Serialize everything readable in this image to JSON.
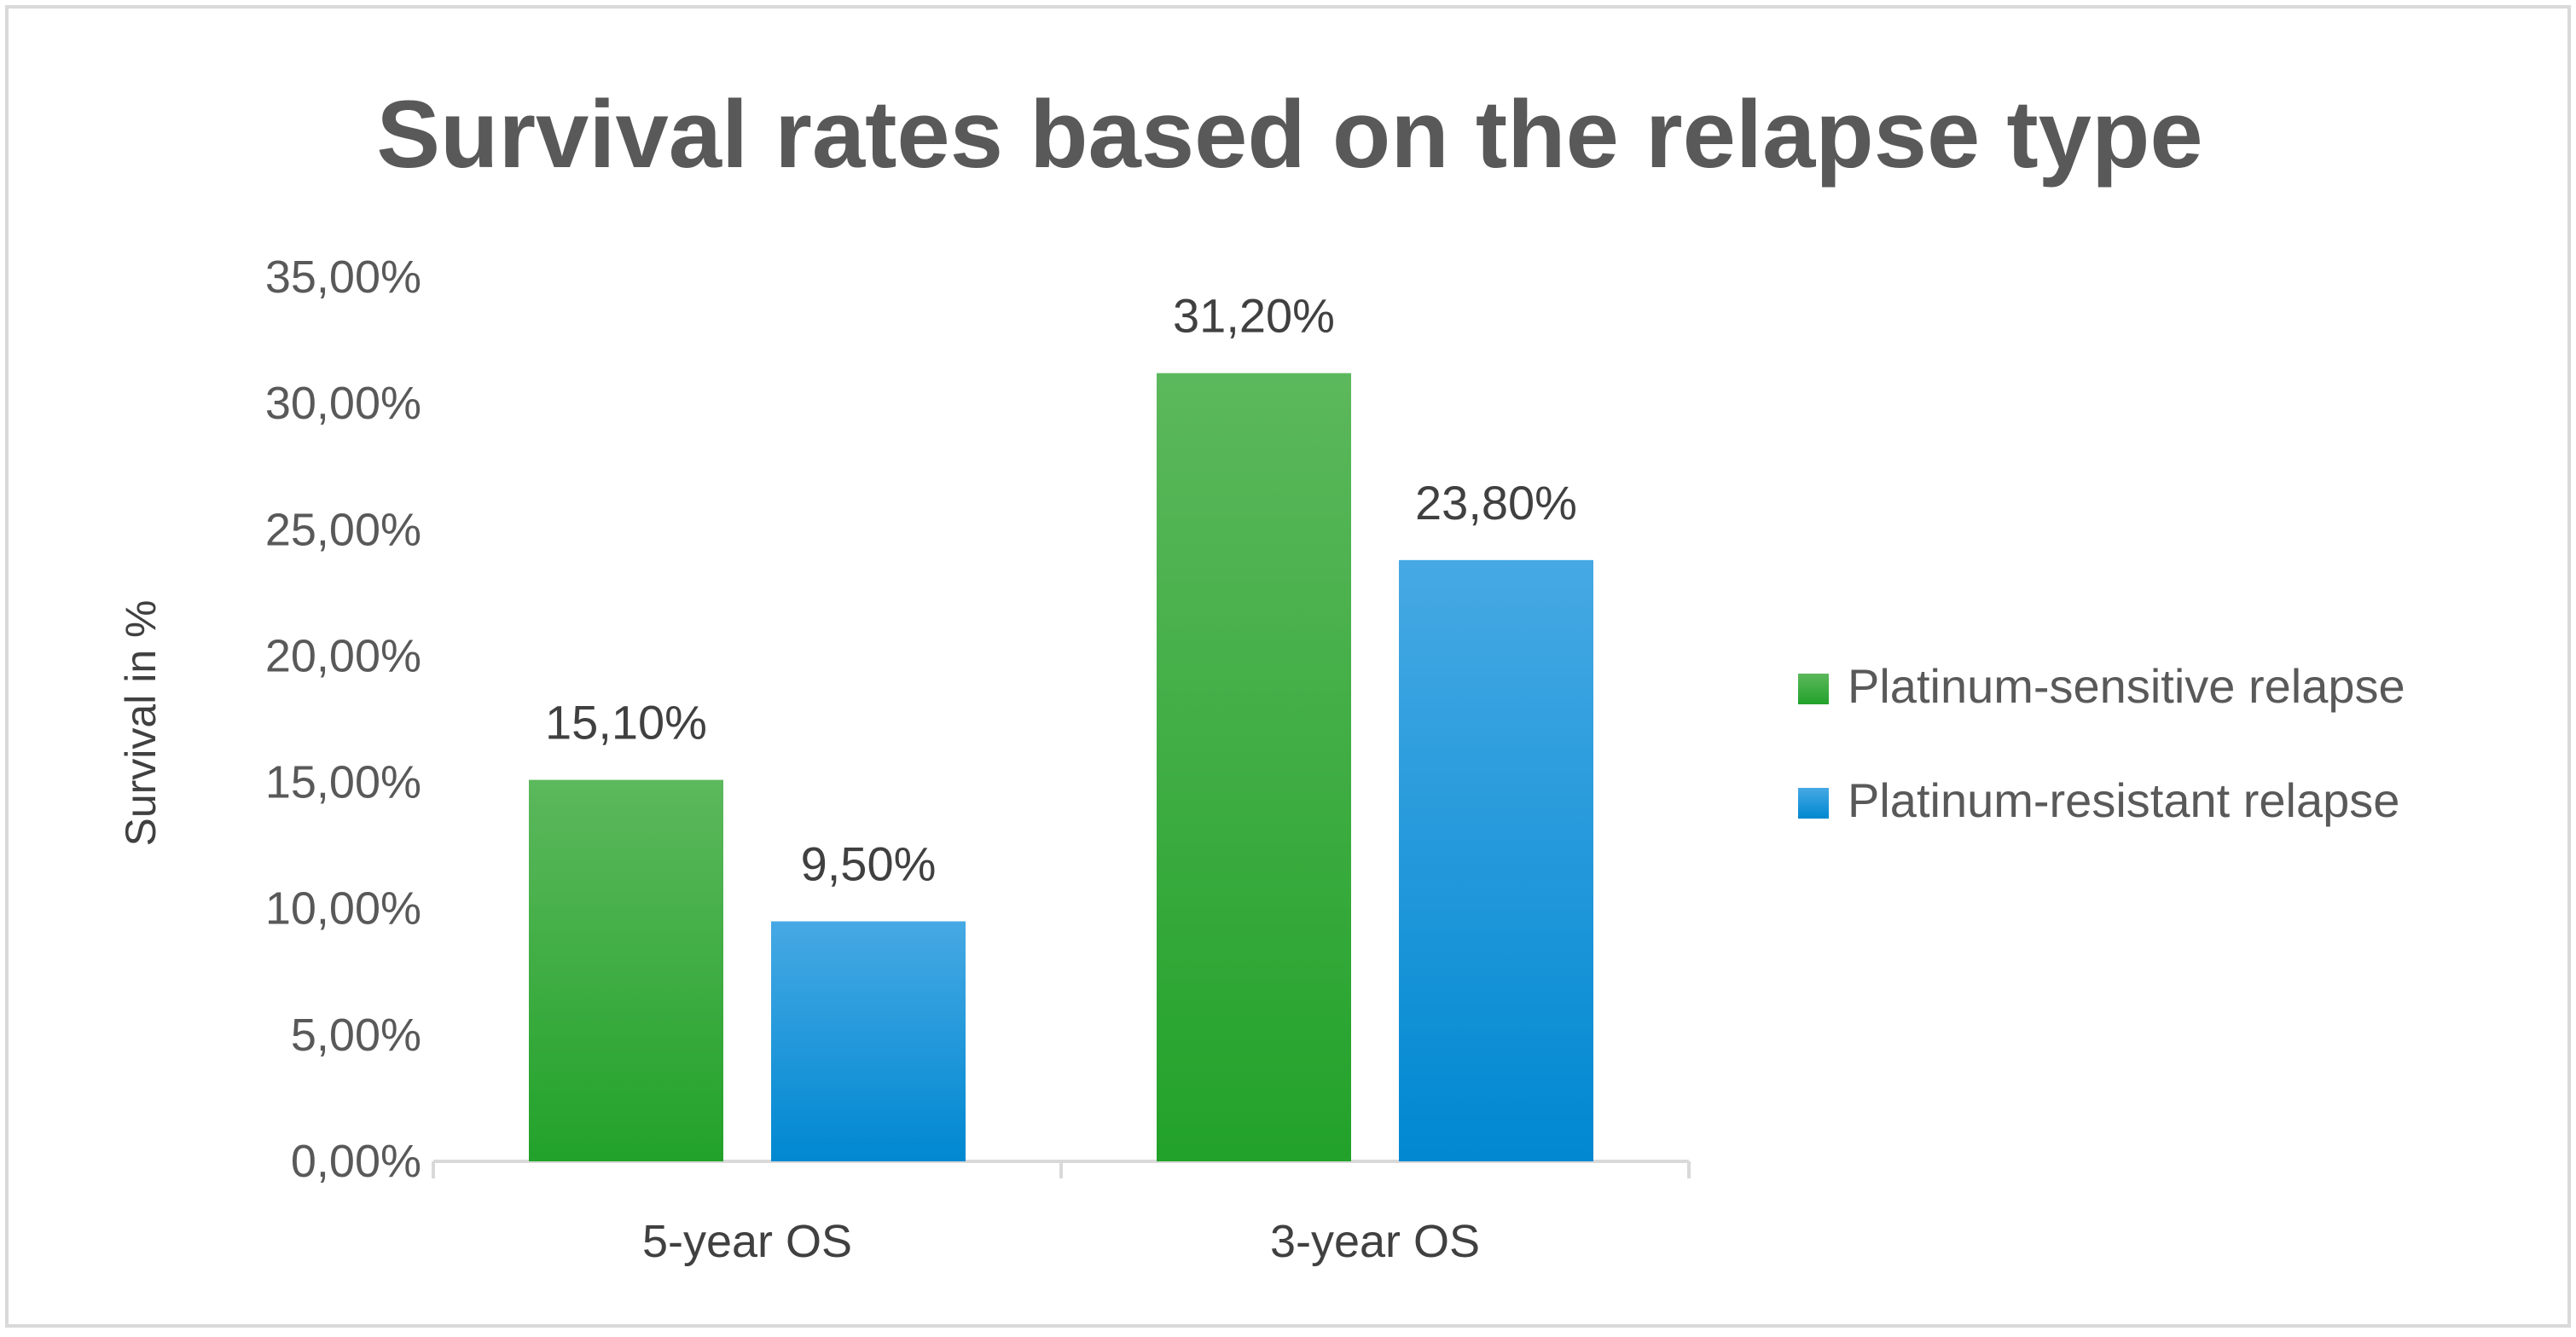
{
  "chart_data": {
    "type": "bar",
    "title": "Survival rates based on the relapse type",
    "xlabel": "",
    "ylabel": "Survival in %",
    "categories": [
      "5-year OS",
      "3-year OS"
    ],
    "series": [
      {
        "name": "Platinum-sensitive relapse",
        "values": [
          15.1,
          31.2
        ],
        "labels": [
          "15,10%",
          "31,20%"
        ],
        "color_top": "#5cb85c",
        "color_bottom": "#22a22a"
      },
      {
        "name": "Platinum-resistant relapse",
        "values": [
          9.5,
          23.8
        ],
        "labels": [
          "9,50%",
          "23,80%"
        ],
        "color_top": "#46a9e4",
        "color_bottom": "#0088d1"
      }
    ],
    "ylim": [
      0,
      35
    ],
    "yticks": [
      0,
      5,
      10,
      15,
      20,
      25,
      30,
      35
    ],
    "ytick_labels": [
      "0,00%",
      "5,00%",
      "10,00%",
      "15,00%",
      "20,00%",
      "25,00%",
      "30,00%",
      "35,00%"
    ],
    "grid": false,
    "legend_position": "right"
  }
}
